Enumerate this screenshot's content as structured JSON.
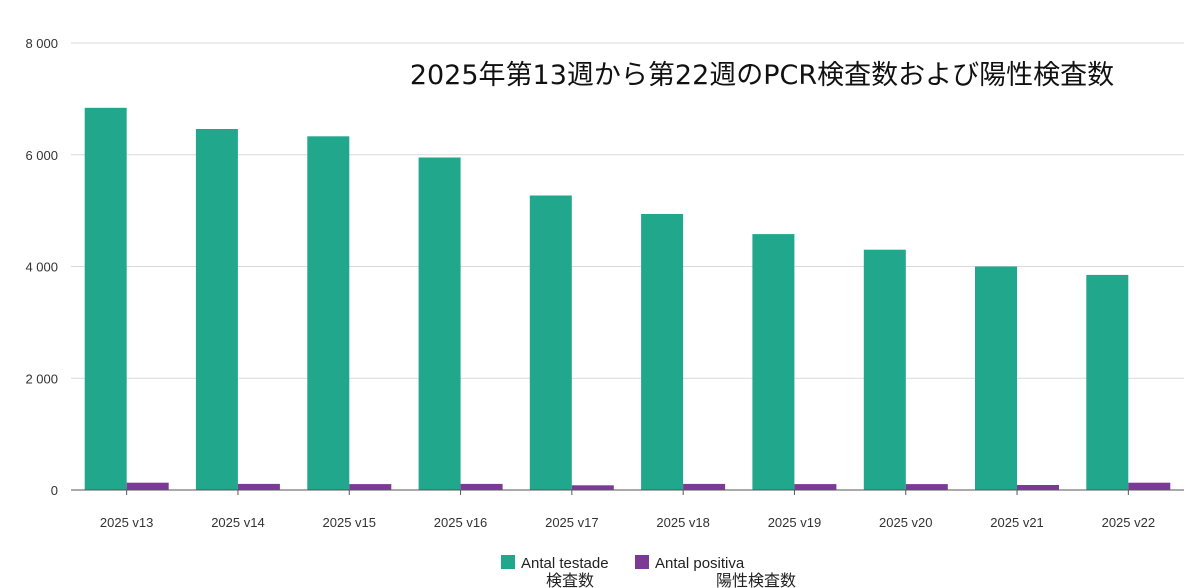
{
  "colors": {
    "tested": "#21a78b",
    "positive": "#7b3a96",
    "grid": "#d9d9d9",
    "axis": "#555555"
  },
  "chart_data": {
    "type": "bar",
    "title": "2025年第13週から第22週のPCR検査数および陽性検査数",
    "xlabel": "",
    "ylabel": "",
    "ylim": [
      0,
      8000
    ],
    "yticks": [
      0,
      2000,
      4000,
      6000,
      8000
    ],
    "ytick_labels": [
      "0",
      "2 000",
      "4 000",
      "6 000",
      "8 000"
    ],
    "grid": true,
    "legend_position": "bottom-center",
    "categories": [
      "2025 v13",
      "2025 v14",
      "2025 v15",
      "2025 v16",
      "2025 v17",
      "2025 v18",
      "2025 v19",
      "2025 v20",
      "2025 v21",
      "2025 v22"
    ],
    "series": [
      {
        "name": "Antal testade",
        "subtitle": "検査数",
        "values": [
          6840,
          6460,
          6330,
          5950,
          5270,
          4940,
          4580,
          4300,
          4000,
          3850
        ]
      },
      {
        "name": "Antal positiva",
        "subtitle": "陽性検査数",
        "values": [
          130,
          110,
          105,
          110,
          85,
          110,
          105,
          105,
          90,
          130
        ]
      }
    ]
  }
}
